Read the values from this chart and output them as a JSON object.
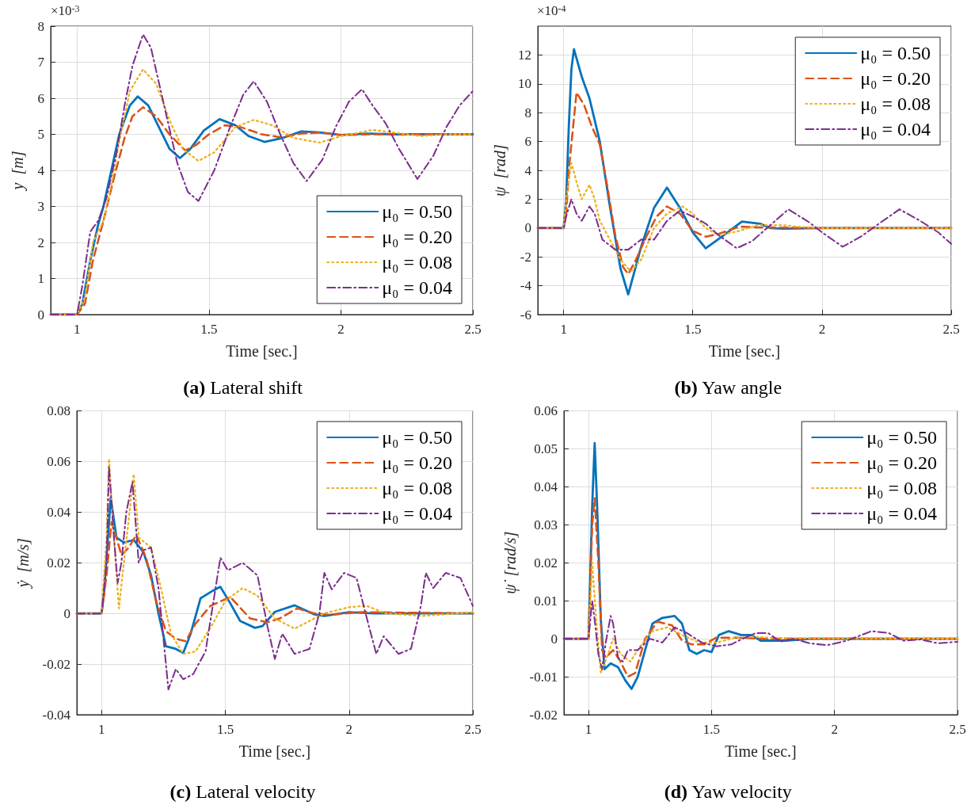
{
  "chart_data": [
    {
      "type": "line",
      "title": "(a) Lateral shift",
      "xlabel": "Time [sec.]",
      "ylabel": "y  [m]",
      "annotations": [
        "×10$^{-3}$"
      ],
      "xlim": [
        0.9,
        2.5
      ],
      "xticks": [
        1,
        1.5,
        2,
        2.5
      ],
      "ylim": [
        0,
        8
      ],
      "yticks": [
        0,
        1,
        2,
        3,
        4,
        5,
        6,
        7,
        8
      ],
      "grid": true,
      "legend": "bottom right",
      "marker": "none",
      "series": [
        {
          "name": "μ₀ = 0.50",
          "color": "#0072bd",
          "line_style": "solid",
          "x": [
            0.9,
            1.0,
            1.02,
            1.05,
            1.08,
            1.1,
            1.13,
            1.16,
            1.2,
            1.23,
            1.27,
            1.31,
            1.35,
            1.39,
            1.43,
            1.48,
            1.54,
            1.6,
            1.65,
            1.71,
            1.78,
            1.85,
            1.92,
            2.0,
            2.1,
            2.2,
            2.5
          ],
          "values": [
            0,
            0,
            0.3,
            1.5,
            2.5,
            3.0,
            4.0,
            5.0,
            5.8,
            6.05,
            5.8,
            5.2,
            4.6,
            4.34,
            4.6,
            5.1,
            5.42,
            5.25,
            4.95,
            4.79,
            4.9,
            5.08,
            5.05,
            4.98,
            5.02,
            5.0,
            5.0
          ]
        },
        {
          "name": "μ₀ = 0.20",
          "color": "#d95319",
          "line_style": "dashed",
          "x": [
            0.9,
            1.0,
            1.03,
            1.06,
            1.1,
            1.14,
            1.18,
            1.21,
            1.25,
            1.3,
            1.35,
            1.41,
            1.45,
            1.5,
            1.56,
            1.62,
            1.7,
            1.77,
            1.85,
            1.92,
            2.0,
            2.1,
            2.5
          ],
          "values": [
            0,
            0,
            0.3,
            1.5,
            2.6,
            3.8,
            4.9,
            5.5,
            5.75,
            5.5,
            5.0,
            4.55,
            4.7,
            5.0,
            5.25,
            5.2,
            5.0,
            4.92,
            5.02,
            5.05,
            4.98,
            5.0,
            5.0
          ]
        },
        {
          "name": "μ₀ = 0.08",
          "color": "#edb120",
          "line_style": "dotted",
          "x": [
            0.9,
            1.0,
            1.03,
            1.06,
            1.1,
            1.13,
            1.16,
            1.2,
            1.25,
            1.3,
            1.35,
            1.4,
            1.46,
            1.52,
            1.6,
            1.67,
            1.74,
            1.82,
            1.92,
            2.0,
            2.12,
            2.2,
            2.3,
            2.4,
            2.5
          ],
          "values": [
            0,
            0,
            0.5,
            2.0,
            2.6,
            3.6,
            4.8,
            6.2,
            6.8,
            6.4,
            5.4,
            4.6,
            4.26,
            4.5,
            5.2,
            5.4,
            5.25,
            4.9,
            4.77,
            4.95,
            5.12,
            5.05,
            4.95,
            5.0,
            5.0
          ]
        },
        {
          "name": "μ₀ = 0.04",
          "color": "#7e2f8e",
          "line_style": "dashdot",
          "x": [
            0.9,
            1.0,
            1.02,
            1.05,
            1.08,
            1.11,
            1.15,
            1.18,
            1.21,
            1.25,
            1.28,
            1.33,
            1.38,
            1.42,
            1.46,
            1.52,
            1.58,
            1.63,
            1.67,
            1.72,
            1.77,
            1.82,
            1.87,
            1.93,
            1.98,
            2.03,
            2.08,
            2.12,
            2.17,
            2.22,
            2.29,
            2.35,
            2.4,
            2.45,
            2.5
          ],
          "values": [
            0,
            0,
            0.8,
            2.3,
            2.6,
            3.2,
            4.5,
            5.8,
            6.9,
            7.77,
            7.4,
            5.8,
            4.2,
            3.4,
            3.15,
            4.0,
            5.2,
            6.1,
            6.47,
            5.9,
            5.0,
            4.2,
            3.7,
            4.3,
            5.2,
            5.9,
            6.25,
            5.8,
            5.3,
            4.6,
            3.76,
            4.4,
            5.2,
            5.8,
            6.2
          ]
        }
      ]
    },
    {
      "type": "line",
      "title": "(b) Yaw angle",
      "xlabel": "Time [sec.]",
      "ylabel": "ψ  [rad]",
      "annotations": [
        "×10$^{-4}$"
      ],
      "xlim": [
        0.9,
        2.5
      ],
      "xticks": [
        1,
        1.5,
        2,
        2.5
      ],
      "ylim": [
        -6,
        14
      ],
      "yticks": [
        -6,
        -4,
        -2,
        0,
        2,
        4,
        6,
        8,
        10,
        12
      ],
      "grid": true,
      "legend": "top right",
      "marker": "none",
      "series": [
        {
          "name": "μ₀ = 0.50",
          "color": "#0072bd",
          "line_style": "solid",
          "x": [
            0.9,
            1.0,
            1.01,
            1.02,
            1.03,
            1.04,
            1.07,
            1.1,
            1.14,
            1.18,
            1.22,
            1.25,
            1.3,
            1.35,
            1.4,
            1.45,
            1.5,
            1.55,
            1.62,
            1.69,
            1.76,
            1.8,
            1.85,
            2.0,
            2.5
          ],
          "values": [
            0,
            0,
            2,
            7,
            11,
            12.4,
            10.5,
            9.0,
            6.0,
            1.4,
            -2.8,
            -4.6,
            -1.3,
            1.4,
            2.8,
            1.4,
            -0.3,
            -1.4,
            -0.5,
            0.45,
            0.3,
            0,
            -0.05,
            0,
            0
          ]
        },
        {
          "name": "μ₀ = 0.20",
          "color": "#d95319",
          "line_style": "dashed",
          "x": [
            0.9,
            1.0,
            1.01,
            1.02,
            1.05,
            1.08,
            1.11,
            1.14,
            1.17,
            1.2,
            1.23,
            1.25,
            1.28,
            1.32,
            1.36,
            1.4,
            1.45,
            1.5,
            1.55,
            1.6,
            1.68,
            1.75,
            2.0,
            2.5
          ],
          "values": [
            0,
            0,
            1,
            4,
            9.4,
            8.5,
            7.0,
            5.8,
            2.8,
            -0.5,
            -2.7,
            -3.2,
            -2.2,
            -0.6,
            0.8,
            1.5,
            1.0,
            -0.2,
            -0.6,
            -0.4,
            0.1,
            0.05,
            0,
            0
          ]
        },
        {
          "name": "μ₀ = 0.08",
          "color": "#edb120",
          "line_style": "dotted",
          "x": [
            0.9,
            1.0,
            1.01,
            1.03,
            1.05,
            1.07,
            1.1,
            1.12,
            1.14,
            1.17,
            1.22,
            1.26,
            1.3,
            1.35,
            1.4,
            1.46,
            1.5,
            1.55,
            1.6,
            1.68,
            1.75,
            1.85,
            1.9,
            2.0,
            2.5
          ],
          "values": [
            0,
            0,
            2,
            4.5,
            3.2,
            2.0,
            3.0,
            2.0,
            0.5,
            -0.5,
            -2.2,
            -3.0,
            -2.2,
            0,
            1.0,
            1.5,
            1.0,
            0,
            -0.5,
            -0.2,
            0.2,
            0.2,
            0.1,
            0,
            0
          ]
        },
        {
          "name": "μ₀ = 0.04",
          "color": "#7e2f8e",
          "line_style": "dashdot",
          "x": [
            0.9,
            1.0,
            1.01,
            1.03,
            1.05,
            1.07,
            1.1,
            1.12,
            1.15,
            1.2,
            1.25,
            1.3,
            1.35,
            1.4,
            1.45,
            1.5,
            1.55,
            1.6,
            1.67,
            1.73,
            1.8,
            1.87,
            1.95,
            2.0,
            2.08,
            2.15,
            2.22,
            2.3,
            2.38,
            2.45,
            2.5
          ],
          "values": [
            0,
            0,
            0.8,
            2.0,
            1.0,
            0.5,
            1.5,
            1.0,
            -0.8,
            -1.5,
            -1.5,
            -0.8,
            -0.8,
            0.5,
            1.2,
            0.8,
            0.3,
            -0.5,
            -1.4,
            -0.9,
            0.2,
            1.3,
            0.4,
            -0.3,
            -1.3,
            -0.6,
            0.3,
            1.3,
            0.5,
            -0.3,
            -1.1
          ]
        }
      ]
    },
    {
      "type": "line",
      "title": "(c) Lateral velocity",
      "xlabel": "Time [sec.]",
      "ylabel": "ẏ  [m/s]",
      "xlim": [
        0.9,
        2.5
      ],
      "xticks": [
        1,
        1.5,
        2,
        2.5
      ],
      "ylim": [
        -0.04,
        0.08
      ],
      "yticks": [
        -0.04,
        -0.02,
        0,
        0.02,
        0.04,
        0.06,
        0.08
      ],
      "grid": true,
      "legend": "top right",
      "marker": "none",
      "series": [
        {
          "name": "μ₀ = 0.50",
          "color": "#0072bd",
          "line_style": "solid",
          "x": [
            0.9,
            1.0,
            1.01,
            1.037,
            1.06,
            1.09,
            1.13,
            1.17,
            1.2,
            1.23,
            1.26,
            1.3,
            1.33,
            1.36,
            1.4,
            1.45,
            1.48,
            1.52,
            1.56,
            1.62,
            1.65,
            1.7,
            1.78,
            1.86,
            1.9,
            2.0,
            2.1,
            2.5
          ],
          "values": [
            0,
            0,
            0.008,
            0.0457,
            0.03,
            0.028,
            0.029,
            0.024,
            0.015,
            0,
            -0.013,
            -0.014,
            -0.0156,
            -0.008,
            0.006,
            0.009,
            0.0105,
            0.004,
            -0.003,
            -0.0057,
            -0.005,
            0.0006,
            0.0032,
            -0.0004,
            -0.001,
            0.0005,
            0,
            0
          ]
        },
        {
          "name": "μ₀ = 0.20",
          "color": "#d95319",
          "line_style": "dashed",
          "x": [
            0.9,
            1.0,
            1.02,
            1.04,
            1.06,
            1.08,
            1.11,
            1.14,
            1.18,
            1.22,
            1.26,
            1.3,
            1.34,
            1.38,
            1.44,
            1.52,
            1.6,
            1.67,
            1.72,
            1.79,
            1.86,
            1.92,
            2.05,
            2.5
          ],
          "values": [
            0,
            0,
            0.015,
            0.036,
            0.03,
            0.023,
            0.026,
            0.031,
            0.022,
            0.005,
            -0.007,
            -0.01,
            -0.011,
            -0.004,
            0.003,
            0.0065,
            -0.002,
            -0.0035,
            -0.002,
            0.002,
            0,
            -0.0005,
            0.0005,
            0
          ]
        },
        {
          "name": "μ₀ = 0.08",
          "color": "#edb120",
          "line_style": "dotted",
          "x": [
            0.9,
            1.0,
            1.02,
            1.03,
            1.05,
            1.07,
            1.09,
            1.13,
            1.15,
            1.2,
            1.24,
            1.28,
            1.33,
            1.38,
            1.45,
            1.5,
            1.57,
            1.63,
            1.7,
            1.78,
            1.84,
            1.9,
            2.0,
            2.07,
            2.15,
            2.3,
            2.5
          ],
          "values": [
            0,
            0,
            0.03,
            0.061,
            0.03,
            0.002,
            0.02,
            0.055,
            0.03,
            0.026,
            0.01,
            -0.008,
            -0.016,
            -0.015,
            -0.004,
            0.005,
            0.01,
            0.007,
            -0.002,
            -0.006,
            -0.003,
            0,
            0.0025,
            0.003,
            0,
            -0.001,
            0.0005
          ]
        },
        {
          "name": "μ₀ = 0.04",
          "color": "#7e2f8e",
          "line_style": "dashdot",
          "x": [
            0.9,
            1.0,
            1.02,
            1.03,
            1.05,
            1.065,
            1.08,
            1.1,
            1.125,
            1.15,
            1.17,
            1.2,
            1.23,
            1.25,
            1.27,
            1.3,
            1.33,
            1.37,
            1.42,
            1.48,
            1.51,
            1.57,
            1.63,
            1.67,
            1.7,
            1.73,
            1.78,
            1.84,
            1.88,
            1.9,
            1.93,
            1.98,
            2.03,
            2.08,
            2.11,
            2.14,
            2.2,
            2.25,
            2.29,
            2.31,
            2.34,
            2.39,
            2.45,
            2.5
          ],
          "values": [
            0,
            0,
            0.02,
            0.058,
            0.03,
            0.012,
            0.02,
            0.04,
            0.052,
            0.02,
            0.025,
            0.026,
            0.01,
            -0.01,
            -0.03,
            -0.022,
            -0.026,
            -0.024,
            -0.015,
            0.022,
            0.017,
            0.02,
            0.015,
            -0.005,
            -0.018,
            -0.008,
            -0.016,
            -0.014,
            0,
            0.016,
            0.0095,
            0.016,
            0.014,
            -0.005,
            -0.016,
            -0.009,
            -0.016,
            -0.014,
            0.003,
            0.016,
            0.01,
            0.016,
            0.014,
            0.003
          ]
        }
      ]
    },
    {
      "type": "line",
      "title": "(d) Yaw velocity",
      "xlabel": "Time [sec.]",
      "ylabel": "ψ̇  [rad/s]",
      "xlim": [
        0.9,
        2.5
      ],
      "xticks": [
        1,
        1.5,
        2,
        2.5
      ],
      "ylim": [
        -0.02,
        0.06
      ],
      "yticks": [
        -0.02,
        -0.01,
        0,
        0.01,
        0.02,
        0.03,
        0.04,
        0.05,
        0.06
      ],
      "grid": true,
      "legend": "top right",
      "marker": "none",
      "series": [
        {
          "name": "μ₀ = 0.50",
          "color": "#0072bd",
          "line_style": "solid",
          "x": [
            0.9,
            1.0,
            1.015,
            1.025,
            1.035,
            1.05,
            1.065,
            1.09,
            1.12,
            1.15,
            1.175,
            1.2,
            1.23,
            1.26,
            1.3,
            1.35,
            1.38,
            1.41,
            1.44,
            1.47,
            1.5,
            1.53,
            1.57,
            1.62,
            1.66,
            1.7,
            1.8,
            1.9,
            2.5
          ],
          "values": [
            0,
            0,
            0.035,
            0.0515,
            0.035,
            0.005,
            -0.008,
            -0.0065,
            -0.0075,
            -0.011,
            -0.0132,
            -0.01,
            -0.003,
            0.004,
            0.0055,
            0.006,
            0.004,
            -0.003,
            -0.004,
            -0.003,
            -0.0035,
            0.001,
            0.002,
            0.001,
            0.001,
            -0.0005,
            -0.0005,
            0,
            0
          ]
        },
        {
          "name": "μ₀ = 0.20",
          "color": "#d95319",
          "line_style": "dashed",
          "x": [
            0.9,
            1.0,
            1.015,
            1.025,
            1.04,
            1.055,
            1.07,
            1.1,
            1.13,
            1.16,
            1.19,
            1.23,
            1.28,
            1.34,
            1.38,
            1.42,
            1.47,
            1.52,
            1.6,
            1.7,
            2.5
          ],
          "values": [
            0,
            0,
            0.03,
            0.037,
            0.02,
            -0.003,
            -0.005,
            -0.003,
            -0.006,
            -0.01,
            -0.009,
            0,
            0.0045,
            0.0035,
            -0.0005,
            -0.0015,
            -0.0015,
            0.0003,
            0.0003,
            0,
            0
          ]
        },
        {
          "name": "μ₀ = 0.08",
          "color": "#edb120",
          "line_style": "dotted",
          "x": [
            0.9,
            1.0,
            1.015,
            1.03,
            1.05,
            1.08,
            1.1,
            1.13,
            1.17,
            1.21,
            1.26,
            1.32,
            1.38,
            1.45,
            1.52,
            1.6,
            1.68,
            1.75,
            2.5
          ],
          "values": [
            0,
            0,
            0.02,
            0.006,
            -0.009,
            -0.004,
            0,
            -0.004,
            -0.006,
            -0.002,
            0.002,
            0.003,
            0.001,
            -0.001,
            -0.001,
            0.0003,
            0.0005,
            0.0002,
            0
          ]
        },
        {
          "name": "μ₀ = 0.04",
          "color": "#7e2f8e",
          "line_style": "dashdot",
          "x": [
            0.9,
            1.0,
            1.015,
            1.025,
            1.04,
            1.055,
            1.07,
            1.09,
            1.1,
            1.12,
            1.14,
            1.16,
            1.2,
            1.25,
            1.3,
            1.35,
            1.4,
            1.46,
            1.52,
            1.58,
            1.62,
            1.68,
            1.73,
            1.78,
            1.83,
            1.9,
            1.97,
            2.05,
            2.15,
            2.22,
            2.28,
            2.35,
            2.42,
            2.5
          ],
          "values": [
            0,
            0,
            0.01,
            0.005,
            -0.004,
            -0.008,
            -0.001,
            0.006,
            0.004,
            -0.005,
            -0.006,
            -0.003,
            -0.003,
            0,
            -0.001,
            0.003,
            0.0015,
            -0.001,
            -0.002,
            -0.0015,
            -0.0002,
            0.0015,
            0.0015,
            -0.0008,
            0,
            -0.0012,
            -0.0017,
            -0.0005,
            0.002,
            0.0015,
            -0.0005,
            -0.0002,
            -0.0012,
            -0.0008
          ]
        }
      ]
    }
  ]
}
